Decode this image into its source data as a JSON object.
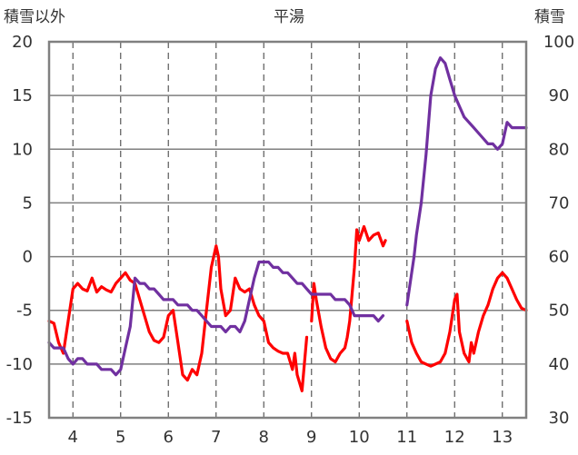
{
  "chart_data": {
    "type": "line",
    "title": "平湯",
    "left_axis_label": "積雪以外",
    "right_axis_label": "積雪",
    "left_ylim": [
      -15,
      20
    ],
    "left_ticks": [
      "20",
      "15",
      "10",
      "5",
      "0",
      "-5",
      "-10",
      "-15"
    ],
    "right_ylim": [
      30,
      100
    ],
    "right_ticks": [
      "100",
      "90",
      "80",
      "70",
      "60",
      "50",
      "40",
      "30"
    ],
    "x_range": [
      3.5,
      13.5
    ],
    "x_ticks": [
      "4",
      "5",
      "6",
      "7",
      "8",
      "9",
      "10",
      "11",
      "12",
      "13"
    ],
    "grid": true,
    "series": [
      {
        "color": "#ff0000",
        "axis": "left",
        "segments": [
          [
            [
              3.5,
              -6
            ],
            [
              3.6,
              -6.2
            ],
            [
              3.7,
              -8
            ],
            [
              3.8,
              -9
            ],
            [
              3.9,
              -6
            ],
            [
              4.0,
              -3
            ],
            [
              4.1,
              -2.5
            ],
            [
              4.2,
              -3.0
            ],
            [
              4.3,
              -3.2
            ],
            [
              4.4,
              -2.0
            ],
            [
              4.5,
              -3.3
            ],
            [
              4.6,
              -2.8
            ],
            [
              4.7,
              -3.1
            ],
            [
              4.8,
              -3.3
            ],
            [
              4.9,
              -2.5
            ],
            [
              5.0,
              -2.0
            ],
            [
              5.1,
              -1.5
            ],
            [
              5.2,
              -2.2
            ],
            [
              5.3,
              -2.5
            ],
            [
              5.4,
              -4.0
            ],
            [
              5.5,
              -5.5
            ],
            [
              5.6,
              -7.0
            ],
            [
              5.7,
              -7.8
            ],
            [
              5.8,
              -8.0
            ],
            [
              5.9,
              -7.5
            ],
            [
              6.0,
              -5.5
            ],
            [
              6.1,
              -5.0
            ],
            [
              6.2,
              -8.0
            ],
            [
              6.3,
              -11.0
            ],
            [
              6.4,
              -11.5
            ],
            [
              6.5,
              -10.5
            ],
            [
              6.6,
              -11.0
            ],
            [
              6.7,
              -9.0
            ],
            [
              6.8,
              -5.0
            ],
            [
              6.9,
              -1.0
            ],
            [
              7.0,
              1.0
            ],
            [
              7.05,
              0.0
            ],
            [
              7.1,
              -3.0
            ],
            [
              7.2,
              -5.5
            ],
            [
              7.3,
              -5.0
            ],
            [
              7.4,
              -2.0
            ],
            [
              7.5,
              -3.0
            ],
            [
              7.6,
              -3.3
            ],
            [
              7.7,
              -3.0
            ],
            [
              7.8,
              -4.5
            ],
            [
              7.9,
              -5.5
            ],
            [
              8.0,
              -6.0
            ],
            [
              8.1,
              -8.0
            ],
            [
              8.2,
              -8.5
            ],
            [
              8.3,
              -8.8
            ],
            [
              8.4,
              -9.0
            ],
            [
              8.5,
              -9.0
            ],
            [
              8.6,
              -10.5
            ],
            [
              8.65,
              -9.0
            ],
            [
              8.7,
              -11.0
            ],
            [
              8.8,
              -12.5
            ],
            [
              8.85,
              -10.0
            ],
            [
              8.9,
              -7.5
            ]
          ],
          [
            [
              9.0,
              -6.0
            ],
            [
              9.05,
              -2.5
            ],
            [
              9.1,
              -4.0
            ],
            [
              9.2,
              -6.5
            ],
            [
              9.3,
              -8.5
            ],
            [
              9.4,
              -9.5
            ],
            [
              9.5,
              -9.8
            ],
            [
              9.6,
              -9.0
            ],
            [
              9.7,
              -8.5
            ],
            [
              9.75,
              -7.5
            ],
            [
              9.8,
              -6.0
            ],
            [
              9.9,
              -1.0
            ],
            [
              9.95,
              2.5
            ],
            [
              10.0,
              1.5
            ],
            [
              10.1,
              2.8
            ],
            [
              10.2,
              1.5
            ],
            [
              10.3,
              2.0
            ],
            [
              10.4,
              2.2
            ],
            [
              10.5,
              1.0
            ],
            [
              10.55,
              1.5
            ]
          ],
          [
            [
              11.0,
              -6.0
            ],
            [
              11.1,
              -8.0
            ],
            [
              11.2,
              -9.0
            ],
            [
              11.3,
              -9.8
            ],
            [
              11.4,
              -10.0
            ],
            [
              11.5,
              -10.2
            ],
            [
              11.6,
              -10.0
            ],
            [
              11.7,
              -9.8
            ],
            [
              11.8,
              -9.0
            ],
            [
              11.9,
              -7.0
            ],
            [
              12.0,
              -4.0
            ],
            [
              12.05,
              -3.5
            ],
            [
              12.1,
              -7.0
            ],
            [
              12.2,
              -9.0
            ],
            [
              12.3,
              -9.8
            ],
            [
              12.35,
              -8.0
            ],
            [
              12.4,
              -9.0
            ],
            [
              12.5,
              -7.0
            ],
            [
              12.6,
              -5.5
            ],
            [
              12.7,
              -4.5
            ],
            [
              12.8,
              -3.0
            ],
            [
              12.9,
              -2.0
            ],
            [
              13.0,
              -1.5
            ],
            [
              13.1,
              -2.0
            ],
            [
              13.2,
              -3.0
            ],
            [
              13.3,
              -4.0
            ],
            [
              13.4,
              -4.8
            ],
            [
              13.5,
              -5.0
            ]
          ]
        ]
      },
      {
        "color": "#7030a0",
        "axis": "right",
        "segments": [
          [
            [
              3.5,
              44
            ],
            [
              3.6,
              43
            ],
            [
              3.7,
              43
            ],
            [
              3.8,
              43
            ],
            [
              3.9,
              41
            ],
            [
              4.0,
              40
            ],
            [
              4.1,
              41
            ],
            [
              4.2,
              41
            ],
            [
              4.3,
              40
            ],
            [
              4.4,
              40
            ],
            [
              4.5,
              40
            ],
            [
              4.6,
              39
            ],
            [
              4.7,
              39
            ],
            [
              4.8,
              39
            ],
            [
              4.9,
              38
            ],
            [
              5.0,
              39
            ],
            [
              5.1,
              43
            ],
            [
              5.2,
              47
            ],
            [
              5.3,
              56
            ],
            [
              5.4,
              55
            ],
            [
              5.5,
              55
            ],
            [
              5.6,
              54
            ],
            [
              5.7,
              54
            ],
            [
              5.8,
              53
            ],
            [
              5.9,
              52
            ],
            [
              6.0,
              52
            ],
            [
              6.1,
              52
            ],
            [
              6.2,
              51
            ],
            [
              6.3,
              51
            ],
            [
              6.4,
              51
            ],
            [
              6.5,
              50
            ],
            [
              6.6,
              50
            ],
            [
              6.7,
              49
            ],
            [
              6.8,
              48
            ],
            [
              6.9,
              47
            ],
            [
              7.0,
              47
            ],
            [
              7.1,
              47
            ],
            [
              7.2,
              46
            ],
            [
              7.3,
              47
            ],
            [
              7.4,
              47
            ],
            [
              7.5,
              46
            ],
            [
              7.6,
              48
            ],
            [
              7.7,
              52
            ],
            [
              7.8,
              56
            ],
            [
              7.9,
              59
            ],
            [
              8.0,
              59
            ],
            [
              8.1,
              59
            ],
            [
              8.2,
              58
            ],
            [
              8.3,
              58
            ],
            [
              8.4,
              57
            ],
            [
              8.5,
              57
            ],
            [
              8.6,
              56
            ],
            [
              8.7,
              55
            ],
            [
              8.8,
              55
            ],
            [
              8.9,
              54
            ],
            [
              9.0,
              53
            ],
            [
              9.1,
              53
            ],
            [
              9.2,
              53
            ],
            [
              9.3,
              53
            ],
            [
              9.4,
              53
            ],
            [
              9.5,
              52
            ],
            [
              9.6,
              52
            ],
            [
              9.7,
              52
            ],
            [
              9.8,
              51
            ],
            [
              9.9,
              49
            ],
            [
              10.0,
              49
            ],
            [
              10.1,
              49
            ],
            [
              10.2,
              49
            ],
            [
              10.3,
              49
            ],
            [
              10.4,
              48
            ],
            [
              10.5,
              49
            ]
          ],
          [
            [
              11.0,
              51
            ],
            [
              11.1,
              57
            ],
            [
              11.15,
              60
            ],
            [
              11.2,
              64
            ],
            [
              11.3,
              70
            ],
            [
              11.4,
              79
            ],
            [
              11.5,
              90
            ],
            [
              11.6,
              95
            ],
            [
              11.7,
              97
            ],
            [
              11.8,
              96
            ],
            [
              11.9,
              93
            ],
            [
              12.0,
              90
            ],
            [
              12.1,
              88
            ],
            [
              12.2,
              86
            ],
            [
              12.3,
              85
            ],
            [
              12.4,
              84
            ],
            [
              12.5,
              83
            ],
            [
              12.6,
              82
            ],
            [
              12.7,
              81
            ],
            [
              12.8,
              81
            ],
            [
              12.9,
              80
            ],
            [
              13.0,
              81
            ],
            [
              13.05,
              83
            ],
            [
              13.1,
              85
            ],
            [
              13.2,
              84
            ],
            [
              13.3,
              84
            ],
            [
              13.4,
              84
            ],
            [
              13.5,
              84
            ]
          ]
        ]
      }
    ]
  }
}
